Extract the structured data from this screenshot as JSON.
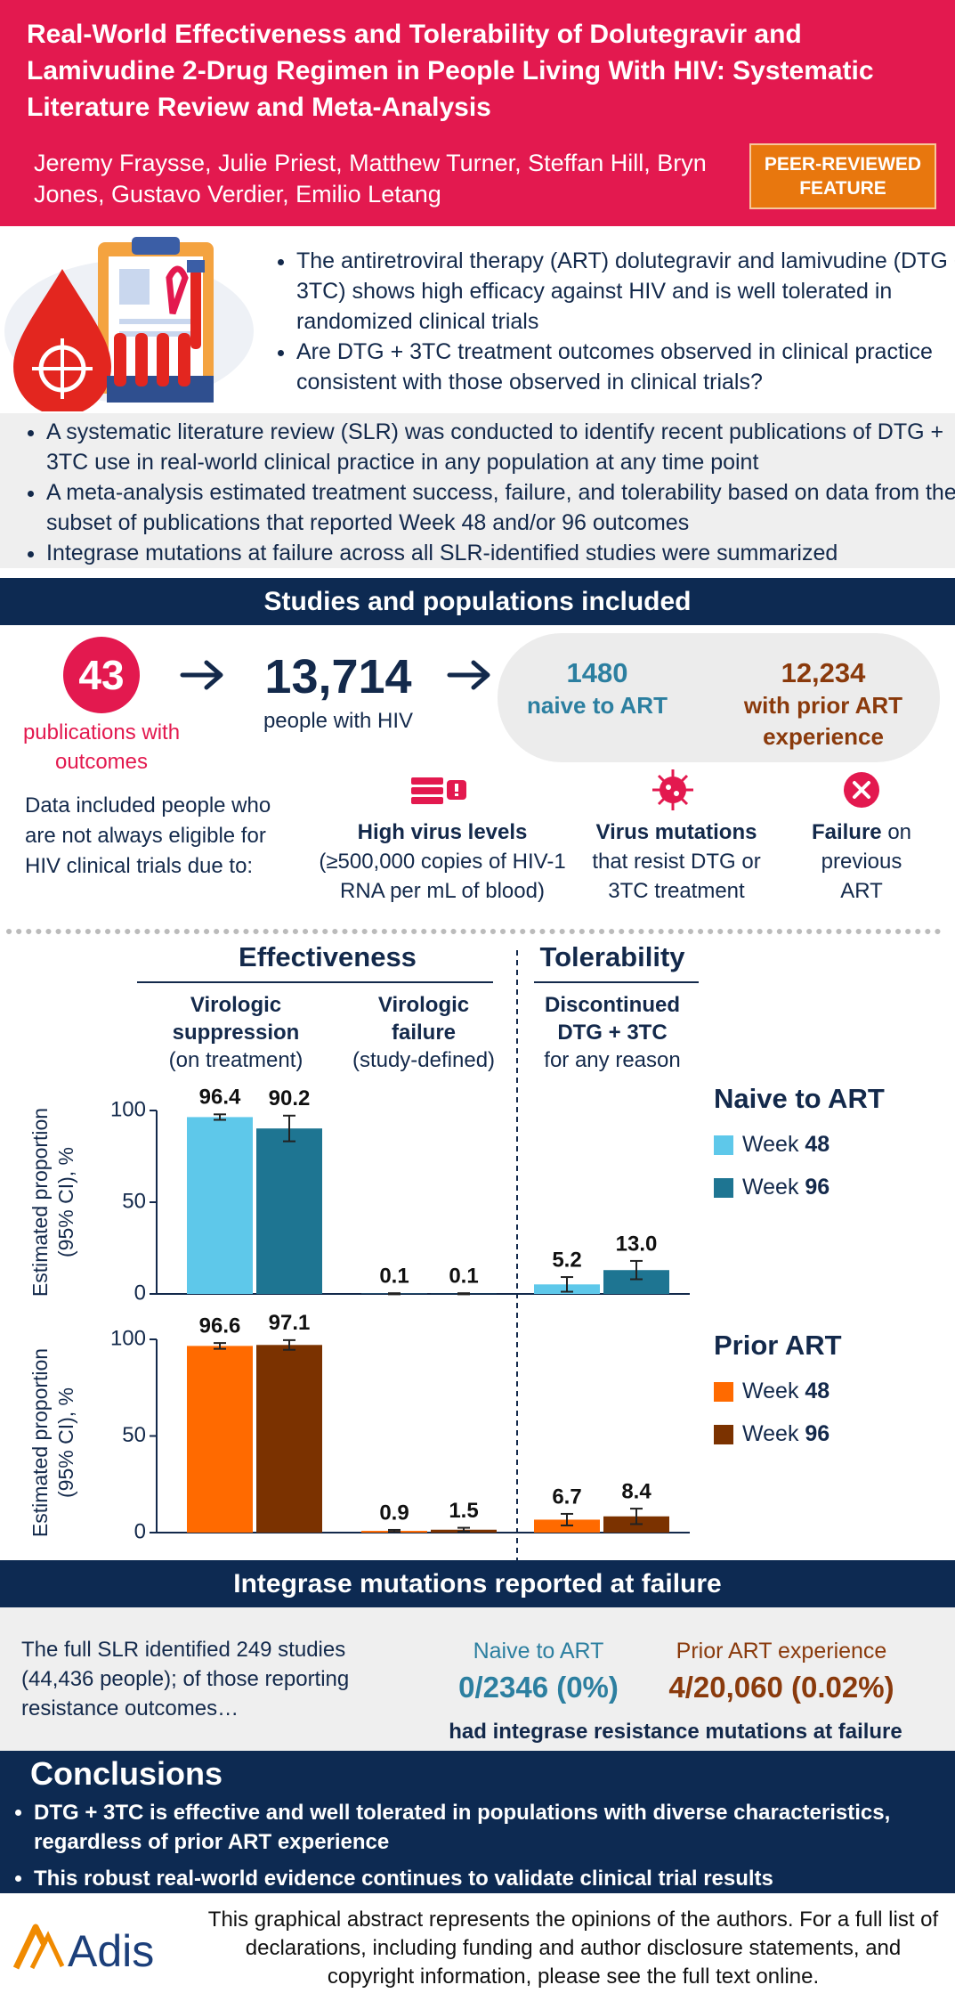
{
  "header": {
    "title": "Real-World Effectiveness and Tolerability of Dolutegravir and Lamivudine 2-Drug Regimen in People Living With HIV: Systematic Literature Review and Meta-Analysis",
    "authors": "Jeremy Fraysse, Julie Priest, Matthew Turner, Steffan Hill, Bryn Jones, Gustavo Verdier, Emilio Letang",
    "badge": "PEER-REVIEWED FEATURE"
  },
  "intro": {
    "bullets": [
      "The antiretroviral therapy (ART) dolutegravir and lamivudine (DTG + 3TC) shows high efficacy against HIV and is well tolerated in randomized clinical trials",
      "Are DTG + 3TC treatment outcomes observed in clinical practice consistent with those observed in clinical trials?"
    ]
  },
  "methods": {
    "bullets": [
      "A systematic literature review (SLR) was conducted to identify recent publications of DTG + 3TC use in real-world clinical practice in any population at any time point",
      "A meta-analysis estimated treatment success, failure, and tolerability based on data from the subset of publications that reported Week 48 and/or 96 outcomes",
      "Integrase mutations at failure across all SLR-identified studies were summarized"
    ]
  },
  "studies": {
    "heading": "Studies and populations included",
    "publications_count": "43",
    "publications_label": "publications with outcomes",
    "people_count": "13,714",
    "people_label": "people with HIV",
    "naive_count": "1480",
    "naive_label": "naive to ART",
    "prior_count": "12,234",
    "prior_label": "with prior ART experience",
    "eligibility_note": "Data included people who are not always eligible for HIV clinical trials due to:",
    "reasons": [
      {
        "title": "High virus levels",
        "detail": "(≥500,000 copies of HIV-1 RNA per mL of blood)"
      },
      {
        "title": "Virus mutations",
        "detail": "that resist DTG or 3TC treatment"
      },
      {
        "title": "Failure",
        "detail": "on previous ART"
      }
    ]
  },
  "outcomes": {
    "effectiveness": "Effectiveness",
    "tolerability": "Tolerability"
  },
  "chart_data": [
    {
      "type": "bar",
      "categories": [
        {
          "name": "Virologic suppression",
          "detail": "(on treatment)"
        },
        {
          "name": "Virologic failure",
          "detail": "(study-defined)"
        },
        {
          "name": "Discontinued DTG + 3TC",
          "detail": "for any reason"
        }
      ],
      "legend_title": "Naive to ART",
      "ylabel": "Estimated proportion (95% CI), %",
      "ylim": [
        0,
        100
      ],
      "yticks": [
        0,
        50,
        100
      ],
      "series": [
        {
          "name": "Week 48",
          "color": "#5ec8ea",
          "values": [
            96.4,
            0.1,
            5.2
          ],
          "errors": [
            1.5,
            0.3,
            4
          ]
        },
        {
          "name": "Week 96",
          "color": "#1e7592",
          "values": [
            90.2,
            0.1,
            13
          ],
          "value_labels": [
            "90.2",
            "0.1",
            "13.0"
          ],
          "errors": [
            7,
            0.3,
            5
          ]
        }
      ]
    },
    {
      "type": "bar",
      "legend_title": "Prior ART",
      "ylabel": "Estimated proportion (95% CI), %",
      "ylim": [
        0,
        100
      ],
      "yticks": [
        0,
        50,
        100
      ],
      "series": [
        {
          "name": "Week 48",
          "color": "#ff6a00",
          "values": [
            96.6,
            0.9,
            6.7
          ],
          "errors": [
            1.5,
            0.5,
            3
          ]
        },
        {
          "name": "Week 96",
          "color": "#7b3200",
          "values": [
            97.1,
            1.5,
            8.4
          ],
          "errors": [
            2.5,
            1,
            4
          ]
        }
      ]
    }
  ],
  "mutations": {
    "heading": "Integrase mutations reported at failure",
    "text": "The full SLR identified 249 studies (44,436 people); of those reporting resistance outcomes…",
    "naive_label": "Naive to ART",
    "naive_value": "0/2346 (0%)",
    "prior_label": "Prior ART experience",
    "prior_value": "4/20,060 (0.02%)",
    "result": "had integrase resistance mutations at failure"
  },
  "conclusions": {
    "title": "Conclusions",
    "bullets": [
      "DTG + 3TC is effective and well tolerated in populations with diverse characteristics, regardless of prior ART experience",
      "This robust real-world evidence continues to validate clinical trial results"
    ]
  },
  "footer": {
    "logo": "Adis",
    "disclaimer": "This graphical abstract represents the opinions of the authors. For a full list of declarations, including funding and author disclosure statements, and copyright information, please see the full text online."
  }
}
